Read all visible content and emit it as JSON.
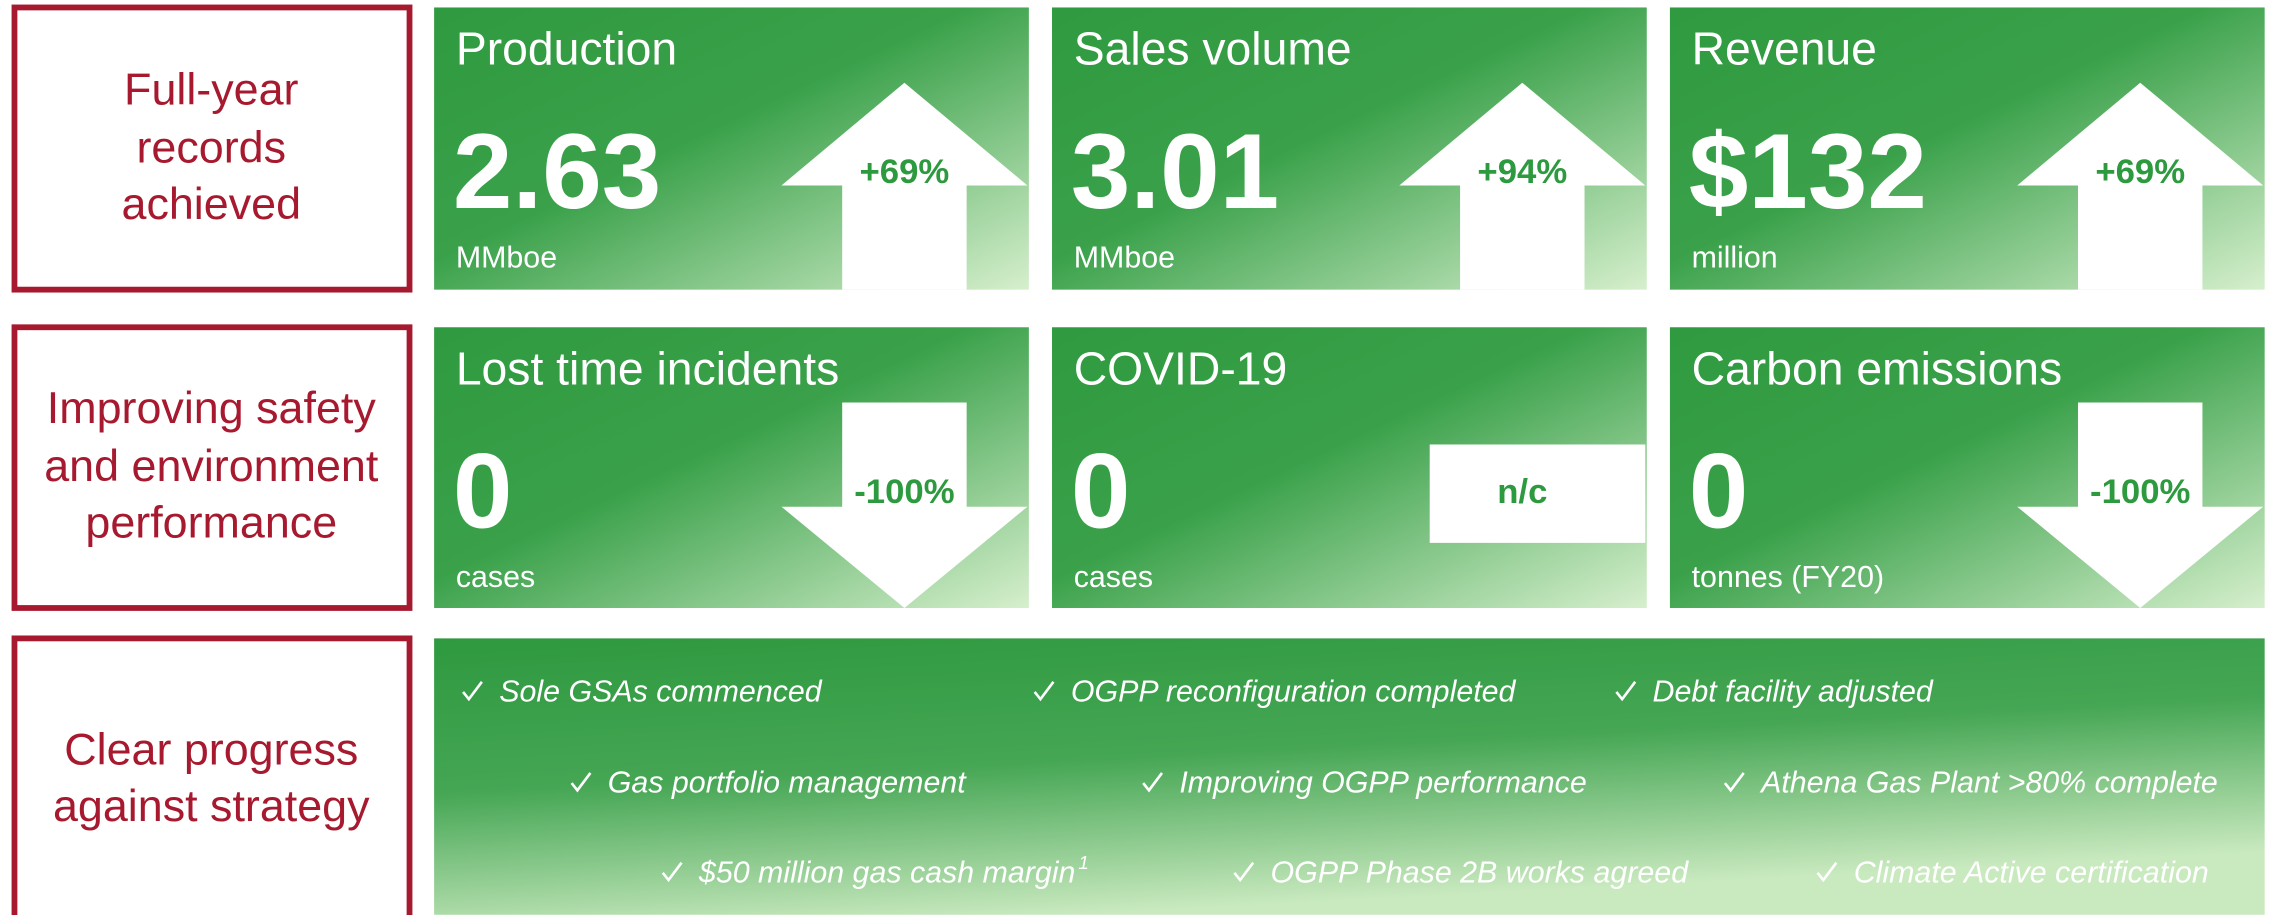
{
  "rows": [
    {
      "label_lines": [
        "Full-year",
        "records",
        "achieved"
      ],
      "tiles": [
        {
          "title": "Production",
          "value": "2.63",
          "unit": "MMboe",
          "change": "+69%",
          "direction": "up"
        },
        {
          "title": "Sales volume",
          "value": "3.01",
          "unit": "MMboe",
          "change": "+94%",
          "direction": "up"
        },
        {
          "title": "Revenue",
          "value": "$132",
          "unit": "million",
          "change": "+69%",
          "direction": "up"
        }
      ]
    },
    {
      "label_lines": [
        "Improving safety",
        "and environment",
        "performance"
      ],
      "tiles": [
        {
          "title": "Lost time incidents",
          "value": "0",
          "unit": "cases",
          "change": "-100%",
          "direction": "down"
        },
        {
          "title": "COVID-19",
          "value": "0",
          "unit": "cases",
          "change": "n/c",
          "direction": "none"
        },
        {
          "title": "Carbon emissions",
          "value": "0",
          "unit": "tonnes (FY20)",
          "change": "-100%",
          "direction": "down"
        }
      ]
    }
  ],
  "strategy": {
    "label_lines": [
      "Clear progress",
      "against strategy"
    ],
    "items": [
      [
        {
          "text": "Sole GSAs commenced"
        },
        {
          "text": "OGPP reconfiguration completed"
        },
        {
          "text": "Debt facility adjusted"
        }
      ],
      [
        {
          "text": "Gas portfolio management"
        },
        {
          "text": "Improving OGPP performance"
        },
        {
          "text": "Athena Gas Plant >80% complete"
        }
      ],
      [
        {
          "text": "$50 million gas cash margin",
          "superscript": "1"
        },
        {
          "text": "OGPP Phase 2B works agreed"
        },
        {
          "text": "Climate Active certification"
        }
      ]
    ]
  }
}
